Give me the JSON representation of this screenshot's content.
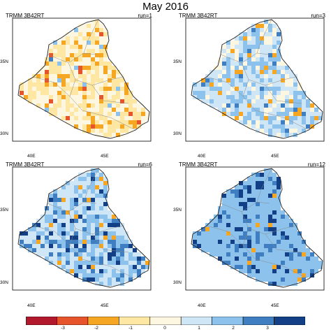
{
  "title": "May 2016",
  "source_label": "TRMM 3B42RT",
  "axes": {
    "lat_labels": [
      "35N",
      "30N"
    ],
    "lon_labels": [
      "40E",
      "45E"
    ]
  },
  "colorbar": {
    "colors": [
      "#b2182b",
      "#e5542a",
      "#f5a623",
      "#fde7a3",
      "#fdf6e0",
      "#cfe6f7",
      "#8cc2ec",
      "#3f7fc1",
      "#123f86"
    ],
    "tick_labels": [
      "-3",
      "-2",
      "-1",
      "0",
      "1",
      "2",
      "3"
    ]
  },
  "panels": [
    {
      "run_label": "run=1"
    },
    {
      "run_label": "run=3"
    },
    {
      "run_label": "run=6"
    },
    {
      "run_label": "run=12"
    }
  ]
}
